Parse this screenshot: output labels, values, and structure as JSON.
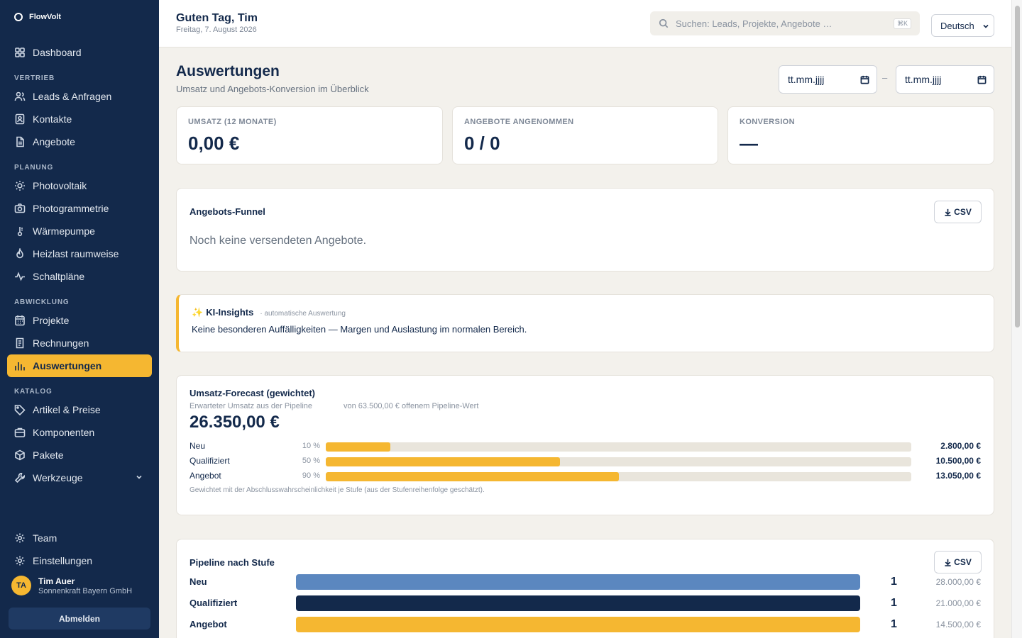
{
  "app": {
    "name": "FlowVolt"
  },
  "sidebar": {
    "items": [
      {
        "key": "dashboard",
        "label": "Dashboard",
        "icon": "grid-icon"
      },
      {
        "section": "VERTRIEB"
      },
      {
        "key": "leads",
        "label": "Leads & Anfragen",
        "icon": "users-icon"
      },
      {
        "key": "kontakte",
        "label": "Kontakte",
        "icon": "contact-icon"
      },
      {
        "key": "angebote",
        "label": "Angebote",
        "icon": "document-icon"
      },
      {
        "section": "PLANUNG"
      },
      {
        "key": "photovoltaik",
        "label": "Photovoltaik",
        "icon": "sun-icon"
      },
      {
        "key": "photogrammetrie",
        "label": "Photogrammetrie",
        "icon": "camera-icon"
      },
      {
        "key": "waermepumpe",
        "label": "Wärmepumpe",
        "icon": "thermometer-icon"
      },
      {
        "key": "heizlast",
        "label": "Heizlast raumweise",
        "icon": "flame-icon"
      },
      {
        "key": "schaltplaene",
        "label": "Schaltpläne",
        "icon": "pulse-icon"
      },
      {
        "section": "ABWICKLUNG"
      },
      {
        "key": "projekte",
        "label": "Projekte",
        "icon": "calendar-icon"
      },
      {
        "key": "rechnungen",
        "label": "Rechnungen",
        "icon": "invoice-icon"
      },
      {
        "key": "auswertungen",
        "label": "Auswertungen",
        "icon": "bar-chart-icon",
        "active": true
      },
      {
        "section": "KATALOG"
      },
      {
        "key": "artikel",
        "label": "Artikel & Preise",
        "icon": "tag-icon"
      },
      {
        "key": "komponenten",
        "label": "Komponenten",
        "icon": "box-icon"
      },
      {
        "key": "pakete",
        "label": "Pakete",
        "icon": "package-icon"
      },
      {
        "key": "werkzeuge",
        "label": "Werkzeuge",
        "icon": "wrench-icon",
        "expandable": true
      }
    ],
    "bottom_items": [
      {
        "key": "team",
        "label": "Team",
        "icon": "gear-icon"
      },
      {
        "key": "einstellungen",
        "label": "Einstellungen",
        "icon": "gear-icon"
      }
    ],
    "user": {
      "initials": "TA",
      "name": "Tim Auer",
      "org": "Sonnenkraft Bayern GmbH"
    },
    "logout_label": "Abmelden"
  },
  "topbar": {
    "greeting": "Guten Tag, Tim",
    "date": "Freitag, 7. August 2026",
    "search_placeholder": "Suchen: Leads, Projekte, Angebote …",
    "search_shortcut": "⌘K",
    "language": "Deutsch"
  },
  "page": {
    "title": "Auswertungen",
    "subtitle": "Umsatz und Angebots-Konversion im Überblick",
    "date_from_placeholder": "tt.mm.jjjj",
    "date_to_placeholder": "tt.mm.jjjj",
    "date_separator": "–"
  },
  "kpis": [
    {
      "label": "UMSATZ (12 MONATE)",
      "value": "0,00 €"
    },
    {
      "label": "ANGEBOTE ANGENOMMEN",
      "value": "0 / 0"
    },
    {
      "label": "KONVERSION",
      "value": "—"
    }
  ],
  "funnel": {
    "title": "Angebots-Funnel",
    "csv_label": "CSV",
    "empty_text": "Noch keine versendeten Angebote."
  },
  "insights": {
    "title": "KI-Insights",
    "meta": "· automatische Auswertung",
    "text": "Keine besonderen Auffälligkeiten — Margen und Auslastung im normalen Bereich."
  },
  "forecast": {
    "title": "Umsatz-Forecast (gewichtet)",
    "subtitle": "Erwarteter Umsatz aus der Pipeline",
    "pipeline_note": "von 63.500,00 € offenem Pipeline-Wert",
    "total": "26.350,00 €",
    "rows": [
      {
        "stage": "Neu",
        "pct_label": "10 %",
        "amount": "2.800,00 €",
        "fill_fraction": 0.11
      },
      {
        "stage": "Qualifiziert",
        "pct_label": "50 %",
        "amount": "10.500,00 €",
        "fill_fraction": 0.4
      },
      {
        "stage": "Angebot",
        "pct_label": "90 %",
        "amount": "13.050,00 €",
        "fill_fraction": 0.5
      }
    ],
    "footnote": "Gewichtet mit der Abschlusswahrscheinlichkeit je Stufe (aus der Stufenreihenfolge geschätzt)."
  },
  "pipeline": {
    "title": "Pipeline nach Stufe",
    "csv_label": "CSV",
    "rows": [
      {
        "stage": "Neu",
        "count": "1",
        "amount": "28.000,00 €",
        "color": "#5b87bf",
        "fill_fraction": 1.0
      },
      {
        "stage": "Qualifiziert",
        "count": "1",
        "amount": "21.000,00 €",
        "color": "#13294b",
        "fill_fraction": 1.0
      },
      {
        "stage": "Angebot",
        "count": "1",
        "amount": "14.500,00 €",
        "color": "#f5b731",
        "fill_fraction": 1.0
      }
    ]
  },
  "colors": {
    "sidebar": "#13294b",
    "accent": "#f5b731",
    "background": "#f3f1ec"
  }
}
